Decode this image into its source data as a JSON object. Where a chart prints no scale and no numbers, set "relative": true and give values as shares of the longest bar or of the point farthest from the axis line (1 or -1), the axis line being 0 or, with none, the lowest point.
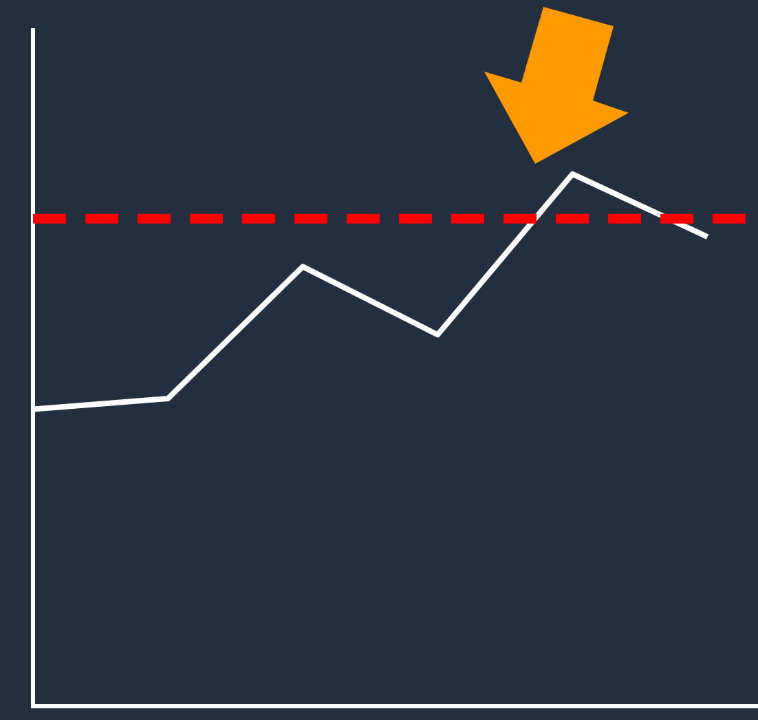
{
  "chart_data": {
    "type": "line",
    "relative": true,
    "categories": [
      null,
      null,
      null,
      null,
      null,
      null
    ],
    "series": [
      {
        "color": "#ffffff",
        "values": [
          0.558,
          0.578,
          0.826,
          0.698,
          1,
          0.882
        ]
      }
    ],
    "ref_lines": [
      {
        "axis": "y",
        "value": 0.916,
        "color": "#ff0000",
        "line_style": "dashed"
      }
    ],
    "marker": "none",
    "legend": false,
    "grid": false
  }
}
